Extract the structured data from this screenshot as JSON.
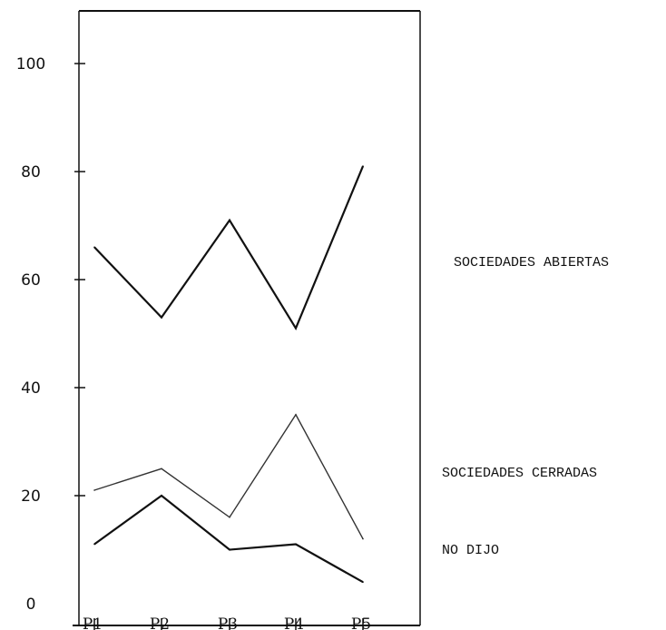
{
  "chart_data": {
    "type": "line",
    "title": "",
    "xlabel": "",
    "ylabel": "",
    "categories": [
      "P1",
      "P2",
      "P3",
      "P4",
      "P5"
    ],
    "ylim": [
      0,
      100
    ],
    "yticks": [
      "0",
      "20",
      "40",
      "60",
      "80",
      "100"
    ],
    "grid": false,
    "legend": "direct labels at right",
    "series": [
      {
        "name": "SOCIEDADES ABIERTAS",
        "values": [
          66,
          53,
          71,
          51,
          81
        ],
        "color": "#111111",
        "stroke": "bold"
      },
      {
        "name": "SOCIEDADES CERRADAS",
        "values": [
          21,
          25,
          16,
          35,
          12
        ],
        "color": "#333333",
        "stroke": "thin"
      },
      {
        "name": "NO DIJO",
        "values": [
          11,
          20,
          10,
          11,
          4
        ],
        "color": "#111111",
        "stroke": "bold"
      }
    ]
  }
}
